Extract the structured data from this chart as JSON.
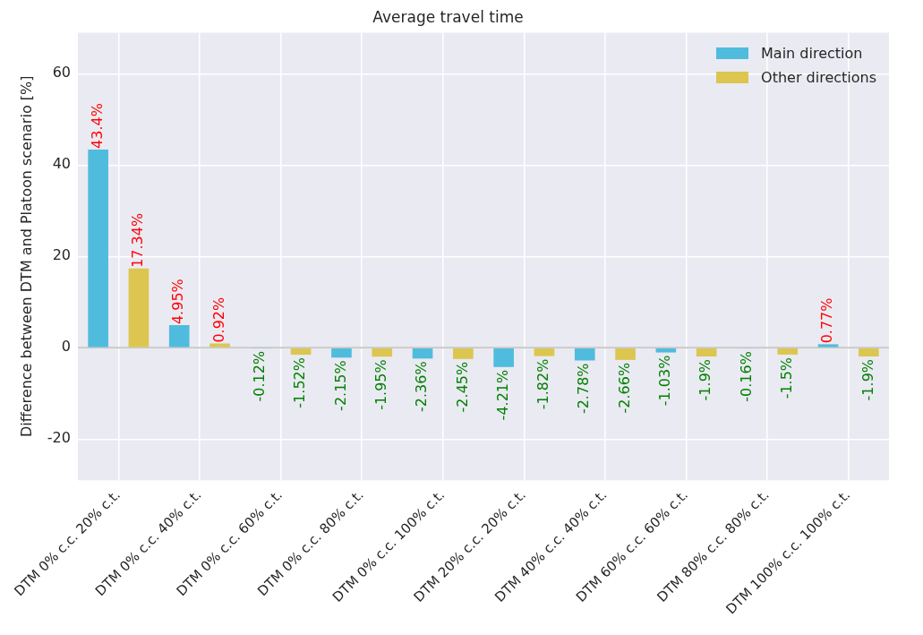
{
  "chart_data": {
    "type": "bar",
    "title": "Average travel time",
    "ylabel": "Difference between DTM and Platoon scenario [%]",
    "categories": [
      "DTM 0% c.c. 20% c.t.",
      "DTM 0% c.c. 40% c.t.",
      "DTM 0% c.c. 60% c.t.",
      "DTM 0% c.c. 80% c.t.",
      "DTM 0% c.c. 100% c.t.",
      "DTM 20% c.c. 20% c.t.",
      "DTM 40% c.c. 40% c.t.",
      "DTM 60% c.c. 60% c.t.",
      "DTM 80% c.c. 80% c.t.",
      "DTM 100% c.c. 100% c.t."
    ],
    "series": [
      {
        "name": "Main direction",
        "color": "#4fbcdd",
        "values": [
          43.4,
          4.95,
          -0.12,
          -2.15,
          -2.36,
          -4.21,
          -2.78,
          -1.03,
          -0.16,
          0.77
        ],
        "value_labels": [
          "43.4%",
          "4.95%",
          "-0.12%",
          "-2.15%",
          "-2.36%",
          "-4.21%",
          "-2.78%",
          "-1.03%",
          "-0.16%",
          "0.77%"
        ]
      },
      {
        "name": "Other directions",
        "color": "#dcc64f",
        "values": [
          17.34,
          0.92,
          -1.52,
          -1.95,
          -2.45,
          -1.82,
          -2.66,
          -1.9,
          -1.5,
          -1.9
        ],
        "value_labels": [
          "17.34%",
          "0.92%",
          "-1.52%",
          "-1.95%",
          "-2.45%",
          "-1.82%",
          "-2.66%",
          "-1.9%",
          "-1.5%",
          "-1.9%"
        ]
      }
    ],
    "ylim": [
      -29,
      69
    ],
    "yticks": [
      -20,
      0,
      20,
      40,
      60
    ],
    "grid": true,
    "legend": "top right",
    "ref_lines": [
      {
        "axis": "y",
        "value": 0,
        "color": "#c8c8c8"
      }
    ]
  }
}
